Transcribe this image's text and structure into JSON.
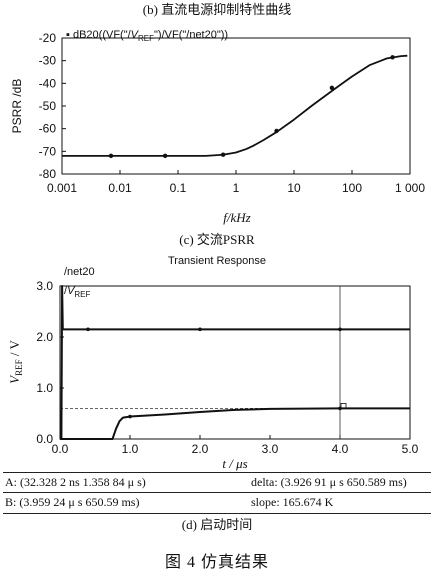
{
  "chart_data": [
    {
      "type": "line",
      "title": "(b) 直流电源抑制特性曲线",
      "legend": "dB20((VF(\"/V_REF\")/VF(\"/net20\"))",
      "legend_parts": [
        "dB20((VF(\"/",
        "V",
        "REF",
        "\")/VF(\"/net20\"))"
      ],
      "xlabel": "f/kHz",
      "ylabel": "PSRR /dB",
      "xscale": "log",
      "xlim": [
        0.001,
        1000
      ],
      "ylim": [
        -80,
        -20
      ],
      "xticks": [
        "0.001",
        "0.01",
        "0.1",
        "1",
        "10",
        "100",
        "1 000"
      ],
      "yticks": [
        "-20",
        "-30",
        "-40",
        "-50",
        "-60",
        "-70",
        "-80"
      ],
      "series": [
        {
          "x": [
            0.001,
            0.01,
            0.1,
            0.3,
            0.6,
            1,
            1.5,
            2,
            3,
            5,
            10,
            20,
            50,
            100,
            200,
            400,
            700,
            900
          ],
          "y": [
            -72,
            -72,
            -72,
            -72,
            -71.5,
            -70.5,
            -69,
            -67.5,
            -65,
            -61.5,
            -56,
            -50,
            -42.5,
            -37,
            -32,
            -29,
            -28,
            -27.8
          ]
        }
      ],
      "markers": {
        "x": [
          0.007,
          0.06,
          0.6,
          5,
          45,
          500
        ],
        "y": [
          -72,
          -72,
          -71.5,
          -61,
          -42,
          -28.5
        ]
      }
    },
    {
      "type": "line",
      "caption": "(c) 交流PSRR",
      "title": "Transient Response",
      "legend": [
        "/net20",
        "/V_REF"
      ],
      "legend_vref_parts": [
        "/",
        "V",
        "REF"
      ],
      "xlabel": "t / μs",
      "ylabel_parts": [
        "V",
        "REF",
        " / V"
      ],
      "xlim": [
        0,
        5
      ],
      "ylim": [
        0,
        3
      ],
      "xticks": [
        "0.0",
        "1.0",
        "2.0",
        "3.0",
        "4.0",
        "5.0"
      ],
      "yticks": [
        "0.0",
        "1.0",
        "2.0",
        "3.0"
      ],
      "series": [
        {
          "name": "/net20",
          "x": [
            0,
            0.02,
            0.03,
            0.04,
            0.08,
            5
          ],
          "y": [
            0,
            0,
            3.0,
            2.15,
            2.15,
            2.15
          ]
        },
        {
          "name": "/V_REF",
          "x": [
            0,
            0.75,
            0.8,
            0.85,
            0.9,
            1.0,
            1.5,
            2.0,
            2.5,
            3.0,
            4.0,
            5.0
          ],
          "y": [
            0,
            0,
            0.2,
            0.35,
            0.42,
            0.44,
            0.48,
            0.53,
            0.57,
            0.59,
            0.6,
            0.6
          ]
        }
      ],
      "cursor": {
        "vertical_x": 4.0,
        "horizontal_y": 0.6
      }
    }
  ],
  "cursor_readout": {
    "a": "A: (32.328 2 ns  1.358 84  μ s)",
    "delta": "delta: (3.926 91  μ s  650.589 ms)",
    "b": "B: (3.959 24  μ s   650.59 ms)",
    "slope": "slope: 165.674 K"
  },
  "caption_d": "(d) 启动时间",
  "figure_caption": "图 4    仿真结果"
}
